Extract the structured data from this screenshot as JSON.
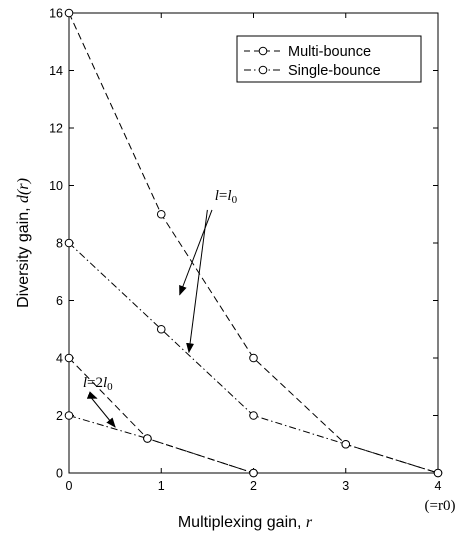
{
  "chart_data": {
    "type": "line",
    "xlabel": "Multiplexing gain,",
    "xlabel_var": "r",
    "ylabel": "Diversity gain,",
    "ylabel_var": "d",
    "ylabel_arg": "(r)",
    "xlim": [
      0,
      4
    ],
    "ylim": [
      0,
      16
    ],
    "xticks": [
      0,
      1,
      2,
      3,
      4
    ],
    "yticks": [
      0,
      2,
      4,
      6,
      8,
      10,
      12,
      14,
      16
    ],
    "x_end_note": "(=r0)",
    "grid": false,
    "legend_position": "top-right",
    "legend": [
      {
        "label": "Multi-bounce",
        "style": "dashed"
      },
      {
        "label": "Single-bounce",
        "style": "dashdot"
      }
    ],
    "series": [
      {
        "name": "Multi-bounce",
        "style": "dashed",
        "x": [
          0,
          1,
          2,
          3,
          4
        ],
        "y": [
          16,
          9,
          4,
          1,
          0
        ]
      },
      {
        "name": "Single-bounce",
        "style": "dashdot",
        "x": [
          0,
          1,
          2,
          3,
          4
        ],
        "y": [
          8,
          5,
          2,
          1,
          0
        ]
      },
      {
        "name": "Multi-bounce",
        "style": "dashed",
        "x": [
          0,
          0.85,
          2
        ],
        "y": [
          4,
          1.2,
          0
        ]
      },
      {
        "name": "Single-bounce",
        "style": "dashdot",
        "x": [
          0,
          0.85,
          2
        ],
        "y": [
          2,
          1.2,
          0
        ]
      }
    ],
    "annotations": [
      {
        "text": "l=l0",
        "arrow_to": [
          [
            1.2,
            6.2
          ],
          [
            1.3,
            4.2
          ]
        ]
      },
      {
        "text": "l=2l0",
        "arrow_to": [
          [
            0.3,
            2.6
          ],
          [
            0.5,
            1.6
          ]
        ]
      }
    ]
  }
}
